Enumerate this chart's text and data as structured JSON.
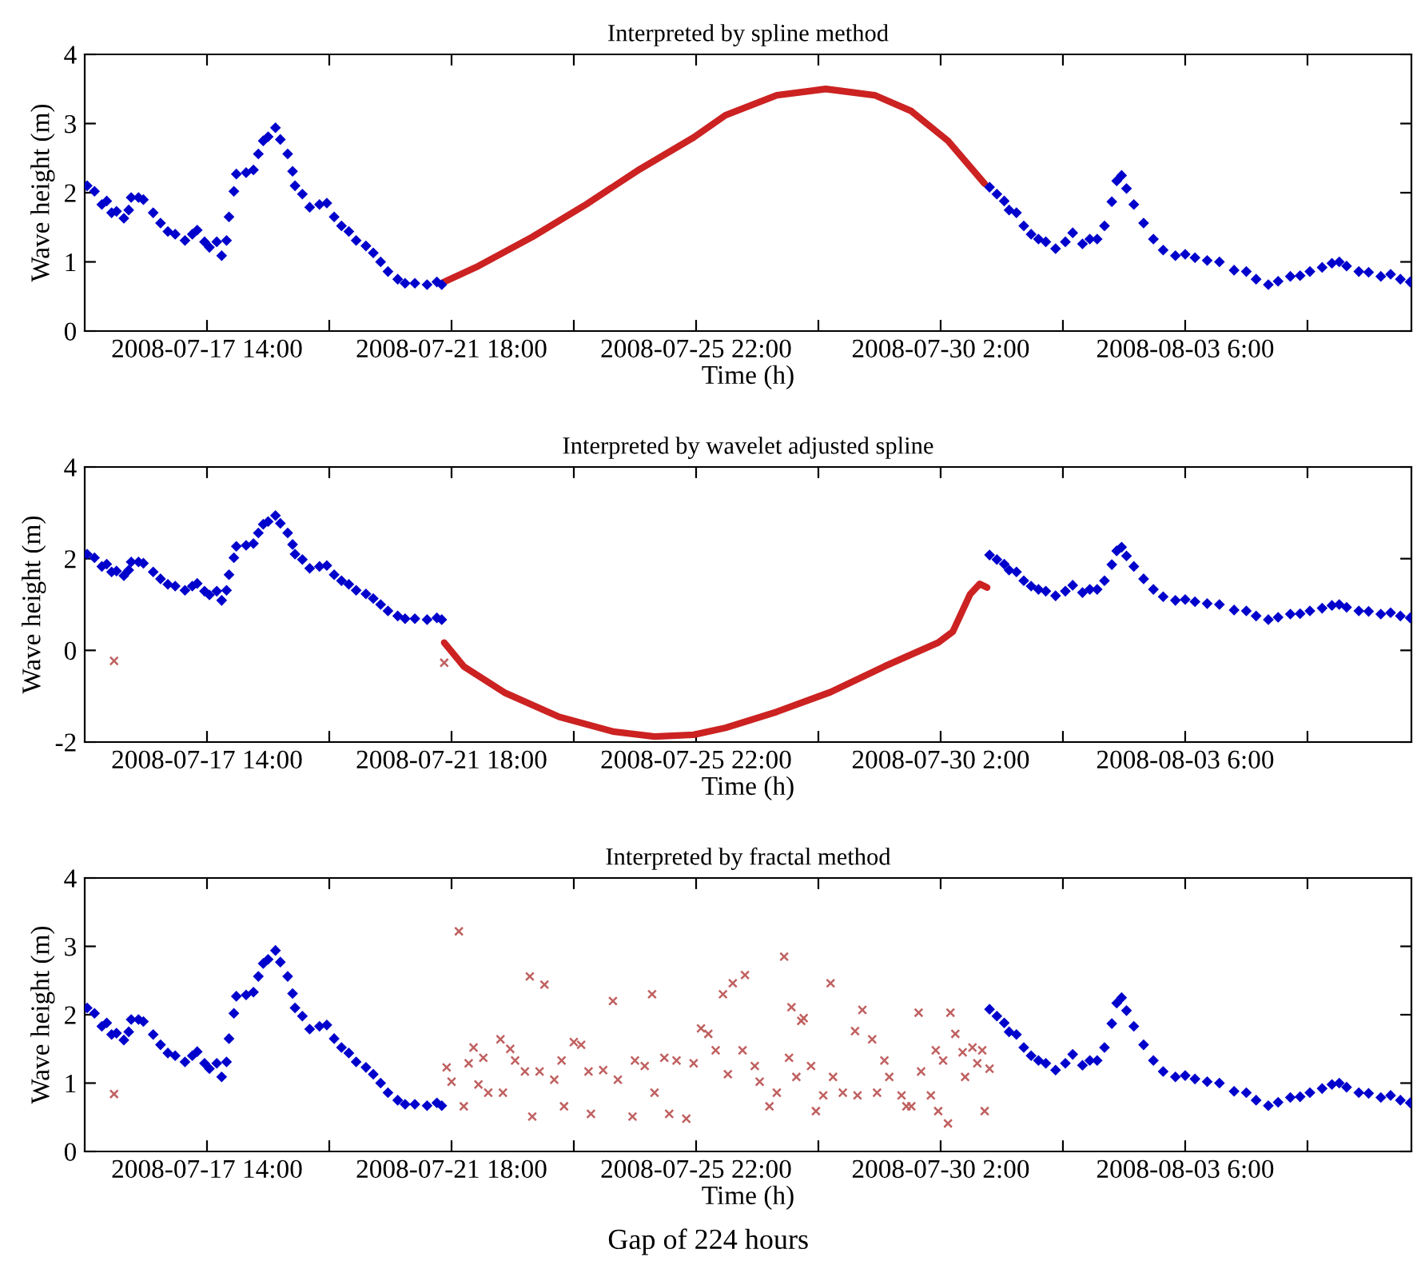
{
  "chart_data": [
    {
      "type": "scatter",
      "title": "Interpreted by spline method",
      "xlabel": "Time (h)",
      "ylabel": "Wave height (m)",
      "xlim": [
        "2008-07-15T12:00",
        "2008-08-07T02:30"
      ],
      "ylim": [
        0,
        4
      ],
      "yticks": [
        0,
        1,
        2,
        3,
        4
      ],
      "xticks": [
        {
          "value": "2008-07-17T14:00",
          "label": "2008-07-17 14:00"
        },
        {
          "value": "2008-07-19T16:00",
          "label": null
        },
        {
          "value": "2008-07-21T18:00",
          "label": "2008-07-21 18:00"
        },
        {
          "value": "2008-07-23T20:00",
          "label": null
        },
        {
          "value": "2008-07-25T22:00",
          "label": "2008-07-25 22:00"
        },
        {
          "value": "2008-07-28T00:00",
          "label": null
        },
        {
          "value": "2008-07-30T02:00",
          "label": "2008-07-30 2:00"
        },
        {
          "value": "2008-08-01T04:00",
          "label": null
        },
        {
          "value": "2008-08-03T06:00",
          "label": "2008-08-03 6:00"
        },
        {
          "value": "2008-08-05T08:00",
          "label": null
        }
      ],
      "grid": false,
      "marker": "diamond",
      "series": [
        {
          "type": "scatter",
          "color": "#0000cc",
          "x": [
            "2008-07-15T13:00",
            "2008-07-15T16:00",
            "2008-07-15T19:00",
            "2008-07-15T21:00",
            "2008-07-15T23:00",
            "2008-07-16T01:00",
            "2008-07-16T04:00",
            "2008-07-16T06:00",
            "2008-07-16T07:00",
            "2008-07-16T10:00",
            "2008-07-16T12:00",
            "2008-07-16T16:00",
            "2008-07-16T19:00",
            "2008-07-16T22:00",
            "2008-07-17T01:00",
            "2008-07-17T05:00",
            "2008-07-17T08:00",
            "2008-07-17T10:00",
            "2008-07-17T13:00",
            "2008-07-17T15:00",
            "2008-07-17T18:00",
            "2008-07-17T20:00",
            "2008-07-17T22:00",
            "2008-07-17T23:00",
            "2008-07-18T01:00",
            "2008-07-18T02:00",
            "2008-07-18T06:00",
            "2008-07-18T09:00",
            "2008-07-18T11:00",
            "2008-07-18T13:00",
            "2008-07-18T15:00",
            "2008-07-18T18:00",
            "2008-07-18T20:00",
            "2008-07-18T23:00",
            "2008-07-19T01:00",
            "2008-07-19T02:00",
            "2008-07-19T05:00",
            "2008-07-19T08:00",
            "2008-07-19T12:00",
            "2008-07-19T15:00",
            "2008-07-19T18:00",
            "2008-07-19T21:00",
            "2008-07-20T00:00",
            "2008-07-20T03:00",
            "2008-07-20T07:00",
            "2008-07-20T10:00",
            "2008-07-20T13:00",
            "2008-07-20T16:00",
            "2008-07-20T20:00",
            "2008-07-20T23:00",
            "2008-07-21T03:00",
            "2008-07-21T08:00",
            "2008-07-21T12:00",
            "2008-07-21T14:00",
            "2008-07-30T22:00",
            "2008-07-31T01:00",
            "2008-07-31T04:00",
            "2008-07-31T06:00",
            "2008-07-31T09:00",
            "2008-07-31T12:00",
            "2008-07-31T15:00",
            "2008-07-31T18:00",
            "2008-07-31T21:00",
            "2008-08-01T01:00",
            "2008-08-01T05:00",
            "2008-08-01T08:00",
            "2008-08-01T12:00",
            "2008-08-01T15:00",
            "2008-08-01T18:00",
            "2008-08-01T21:00",
            "2008-08-02T00:00",
            "2008-08-02T02:00",
            "2008-08-02T04:00",
            "2008-08-02T06:00",
            "2008-08-02T09:00",
            "2008-08-02T13:00",
            "2008-08-02T17:00",
            "2008-08-02T21:00",
            "2008-08-03T02:00",
            "2008-08-03T06:00",
            "2008-08-03T10:00",
            "2008-08-03T15:00",
            "2008-08-03T20:00",
            "2008-08-04T02:00",
            "2008-08-04T07:00",
            "2008-08-04T11:00",
            "2008-08-04T16:00",
            "2008-08-04T20:00",
            "2008-08-05T01:00",
            "2008-08-05T05:00",
            "2008-08-05T09:00",
            "2008-08-05T14:00",
            "2008-08-05T18:00",
            "2008-08-05T21:00",
            "2008-08-06T00:00",
            "2008-08-06T05:00",
            "2008-08-06T09:00",
            "2008-08-06T14:00",
            "2008-08-06T18:00",
            "2008-08-06T22:00",
            "2008-08-07T02:00"
          ],
          "values": [
            2.1,
            2.02,
            1.83,
            1.88,
            1.71,
            1.73,
            1.63,
            1.75,
            1.93,
            1.93,
            1.9,
            1.71,
            1.56,
            1.44,
            1.4,
            1.31,
            1.4,
            1.46,
            1.29,
            1.21,
            1.29,
            1.09,
            1.31,
            1.65,
            2.02,
            2.27,
            2.29,
            2.33,
            2.56,
            2.75,
            2.81,
            2.94,
            2.77,
            2.56,
            2.31,
            2.1,
            1.98,
            1.79,
            1.83,
            1.85,
            1.65,
            1.52,
            1.44,
            1.31,
            1.23,
            1.13,
            1.0,
            0.86,
            0.75,
            0.69,
            0.69,
            0.67,
            0.71,
            0.67,
            2.08,
            1.98,
            1.88,
            1.75,
            1.71,
            1.52,
            1.4,
            1.33,
            1.29,
            1.19,
            1.29,
            1.42,
            1.26,
            1.33,
            1.33,
            1.52,
            1.87,
            2.17,
            2.25,
            2.06,
            1.83,
            1.56,
            1.33,
            1.17,
            1.09,
            1.11,
            1.06,
            1.02,
            1.0,
            0.88,
            0.86,
            0.75,
            0.67,
            0.72,
            0.79,
            0.8,
            0.86,
            0.92,
            0.98,
            1.0,
            0.94,
            0.86,
            0.85,
            0.79,
            0.82,
            0.75,
            0.71
          ]
        },
        {
          "type": "line",
          "marker": "none",
          "color": "#cc2222",
          "x": [
            "2008-07-21T15:00",
            "2008-07-22T05:00",
            "2008-07-23T03:00",
            "2008-07-24T01:00",
            "2008-07-24T23:00",
            "2008-07-25T21:00",
            "2008-07-26T10:00",
            "2008-07-27T07:00",
            "2008-07-28T03:00",
            "2008-07-28T23:00",
            "2008-07-29T14:00",
            "2008-07-30T05:00",
            "2008-07-30T20:00"
          ],
          "values": [
            0.71,
            0.94,
            1.36,
            1.83,
            2.34,
            2.8,
            3.12,
            3.41,
            3.5,
            3.41,
            3.18,
            2.75,
            2.13
          ]
        }
      ]
    },
    {
      "type": "scatter",
      "title": "Interpreted by wavelet adjusted spline",
      "xlabel": "Time (h)",
      "ylabel": "Wave height (m)",
      "xlim": [
        "2008-07-15T12:00",
        "2008-08-07T02:30"
      ],
      "ylim": [
        -2,
        4
      ],
      "yticks": [
        -2,
        0,
        2,
        4
      ],
      "xticks": [
        {
          "value": "2008-07-17T14:00",
          "label": "2008-07-17 14:00"
        },
        {
          "value": "2008-07-19T16:00",
          "label": null
        },
        {
          "value": "2008-07-21T18:00",
          "label": "2008-07-21 18:00"
        },
        {
          "value": "2008-07-23T20:00",
          "label": null
        },
        {
          "value": "2008-07-25T22:00",
          "label": "2008-07-25 22:00"
        },
        {
          "value": "2008-07-28T00:00",
          "label": null
        },
        {
          "value": "2008-07-30T02:00",
          "label": "2008-07-30 2:00"
        },
        {
          "value": "2008-08-01T04:00",
          "label": null
        },
        {
          "value": "2008-08-03T06:00",
          "label": "2008-08-03 6:00"
        },
        {
          "value": "2008-08-05T08:00",
          "label": null
        }
      ],
      "grid": false,
      "marker": "diamond",
      "series": [
        {
          "type": "scatter",
          "color": "#0000cc",
          "x": [
            "2008-07-15T13:00",
            "2008-07-15T16:00",
            "2008-07-15T19:00",
            "2008-07-15T21:00",
            "2008-07-15T23:00",
            "2008-07-16T01:00",
            "2008-07-16T04:00",
            "2008-07-16T06:00",
            "2008-07-16T07:00",
            "2008-07-16T10:00",
            "2008-07-16T12:00",
            "2008-07-16T16:00",
            "2008-07-16T19:00",
            "2008-07-16T22:00",
            "2008-07-17T01:00",
            "2008-07-17T05:00",
            "2008-07-17T08:00",
            "2008-07-17T10:00",
            "2008-07-17T13:00",
            "2008-07-17T15:00",
            "2008-07-17T18:00",
            "2008-07-17T20:00",
            "2008-07-17T22:00",
            "2008-07-17T23:00",
            "2008-07-18T01:00",
            "2008-07-18T02:00",
            "2008-07-18T06:00",
            "2008-07-18T09:00",
            "2008-07-18T11:00",
            "2008-07-18T13:00",
            "2008-07-18T15:00",
            "2008-07-18T18:00",
            "2008-07-18T20:00",
            "2008-07-18T23:00",
            "2008-07-19T01:00",
            "2008-07-19T02:00",
            "2008-07-19T05:00",
            "2008-07-19T08:00",
            "2008-07-19T12:00",
            "2008-07-19T15:00",
            "2008-07-19T18:00",
            "2008-07-19T21:00",
            "2008-07-20T00:00",
            "2008-07-20T03:00",
            "2008-07-20T07:00",
            "2008-07-20T10:00",
            "2008-07-20T13:00",
            "2008-07-20T16:00",
            "2008-07-20T20:00",
            "2008-07-20T23:00",
            "2008-07-21T03:00",
            "2008-07-21T08:00",
            "2008-07-21T12:00",
            "2008-07-21T14:00",
            "2008-07-30T22:00",
            "2008-07-31T01:00",
            "2008-07-31T04:00",
            "2008-07-31T06:00",
            "2008-07-31T09:00",
            "2008-07-31T12:00",
            "2008-07-31T15:00",
            "2008-07-31T18:00",
            "2008-07-31T21:00",
            "2008-08-01T01:00",
            "2008-08-01T05:00",
            "2008-08-01T08:00",
            "2008-08-01T12:00",
            "2008-08-01T15:00",
            "2008-08-01T18:00",
            "2008-08-01T21:00",
            "2008-08-02T00:00",
            "2008-08-02T02:00",
            "2008-08-02T04:00",
            "2008-08-02T06:00",
            "2008-08-02T09:00",
            "2008-08-02T13:00",
            "2008-08-02T17:00",
            "2008-08-02T21:00",
            "2008-08-03T02:00",
            "2008-08-03T06:00",
            "2008-08-03T10:00",
            "2008-08-03T15:00",
            "2008-08-03T20:00",
            "2008-08-04T02:00",
            "2008-08-04T07:00",
            "2008-08-04T11:00",
            "2008-08-04T16:00",
            "2008-08-04T20:00",
            "2008-08-05T01:00",
            "2008-08-05T05:00",
            "2008-08-05T09:00",
            "2008-08-05T14:00",
            "2008-08-05T18:00",
            "2008-08-05T21:00",
            "2008-08-06T00:00",
            "2008-08-06T05:00",
            "2008-08-06T09:00",
            "2008-08-06T14:00",
            "2008-08-06T18:00",
            "2008-08-06T22:00",
            "2008-08-07T02:00"
          ],
          "values": [
            2.1,
            2.02,
            1.83,
            1.88,
            1.71,
            1.73,
            1.63,
            1.75,
            1.93,
            1.93,
            1.9,
            1.71,
            1.56,
            1.44,
            1.4,
            1.31,
            1.4,
            1.46,
            1.29,
            1.21,
            1.29,
            1.09,
            1.31,
            1.65,
            2.02,
            2.27,
            2.29,
            2.33,
            2.56,
            2.75,
            2.81,
            2.94,
            2.77,
            2.56,
            2.31,
            2.1,
            1.98,
            1.79,
            1.83,
            1.85,
            1.65,
            1.52,
            1.44,
            1.31,
            1.23,
            1.13,
            1.0,
            0.86,
            0.75,
            0.69,
            0.69,
            0.67,
            0.71,
            0.67,
            2.08,
            1.98,
            1.88,
            1.75,
            1.71,
            1.52,
            1.4,
            1.33,
            1.29,
            1.19,
            1.29,
            1.42,
            1.26,
            1.33,
            1.33,
            1.52,
            1.87,
            2.17,
            2.25,
            2.06,
            1.83,
            1.56,
            1.33,
            1.17,
            1.09,
            1.11,
            1.06,
            1.02,
            1.0,
            0.88,
            0.86,
            0.75,
            0.67,
            0.72,
            0.79,
            0.8,
            0.86,
            0.92,
            0.98,
            1.0,
            0.94,
            0.86,
            0.85,
            0.79,
            0.82,
            0.75,
            0.71
          ]
        },
        {
          "type": "line",
          "marker": "none",
          "color": "#cc2222",
          "x": [
            "2008-07-21T15:00",
            "2008-07-21T23:00",
            "2008-07-22T16:00",
            "2008-07-23T14:00",
            "2008-07-24T12:00",
            "2008-07-25T05:00",
            "2008-07-25T21:00",
            "2008-07-26T10:00",
            "2008-07-27T07:00",
            "2008-07-28T05:00",
            "2008-07-29T03:00",
            "2008-07-30T01:00",
            "2008-07-30T07:00",
            "2008-07-30T14:00",
            "2008-07-30T18:00",
            "2008-07-30T21:00"
          ],
          "values": [
            0.17,
            -0.35,
            -0.93,
            -1.45,
            -1.77,
            -1.88,
            -1.84,
            -1.69,
            -1.34,
            -0.91,
            -0.35,
            0.17,
            0.41,
            1.22,
            1.45,
            1.37
          ]
        },
        {
          "type": "scatter",
          "marker": "cross",
          "color": "#c06060",
          "x": [
            "2008-07-16T00:00",
            "2008-07-21T15:00"
          ],
          "values": [
            -0.23,
            -0.27
          ]
        }
      ]
    },
    {
      "type": "scatter",
      "title": "Interpreted by fractal method",
      "xlabel": "Time (h)",
      "ylabel": "Wave height (m)",
      "annotations": [
        "Gap of 224 hours"
      ],
      "xlim": [
        "2008-07-15T12:00",
        "2008-08-07T02:30"
      ],
      "ylim": [
        0,
        4
      ],
      "yticks": [
        0,
        1,
        2,
        3,
        4
      ],
      "xticks": [
        {
          "value": "2008-07-17T14:00",
          "label": "2008-07-17 14:00"
        },
        {
          "value": "2008-07-19T16:00",
          "label": null
        },
        {
          "value": "2008-07-21T18:00",
          "label": "2008-07-21 18:00"
        },
        {
          "value": "2008-07-23T20:00",
          "label": null
        },
        {
          "value": "2008-07-25T22:00",
          "label": "2008-07-25 22:00"
        },
        {
          "value": "2008-07-28T00:00",
          "label": null
        },
        {
          "value": "2008-07-30T02:00",
          "label": "2008-07-30 2:00"
        },
        {
          "value": "2008-08-01T04:00",
          "label": null
        },
        {
          "value": "2008-08-03T06:00",
          "label": "2008-08-03 6:00"
        },
        {
          "value": "2008-08-05T08:00",
          "label": null
        }
      ],
      "grid": false,
      "marker": "diamond",
      "series": [
        {
          "type": "scatter",
          "color": "#0000cc",
          "x": [
            "2008-07-15T13:00",
            "2008-07-15T16:00",
            "2008-07-15T19:00",
            "2008-07-15T21:00",
            "2008-07-15T23:00",
            "2008-07-16T01:00",
            "2008-07-16T04:00",
            "2008-07-16T06:00",
            "2008-07-16T07:00",
            "2008-07-16T10:00",
            "2008-07-16T12:00",
            "2008-07-16T16:00",
            "2008-07-16T19:00",
            "2008-07-16T22:00",
            "2008-07-17T01:00",
            "2008-07-17T05:00",
            "2008-07-17T08:00",
            "2008-07-17T10:00",
            "2008-07-17T13:00",
            "2008-07-17T15:00",
            "2008-07-17T18:00",
            "2008-07-17T20:00",
            "2008-07-17T22:00",
            "2008-07-17T23:00",
            "2008-07-18T01:00",
            "2008-07-18T02:00",
            "2008-07-18T06:00",
            "2008-07-18T09:00",
            "2008-07-18T11:00",
            "2008-07-18T13:00",
            "2008-07-18T15:00",
            "2008-07-18T18:00",
            "2008-07-18T20:00",
            "2008-07-18T23:00",
            "2008-07-19T01:00",
            "2008-07-19T02:00",
            "2008-07-19T05:00",
            "2008-07-19T08:00",
            "2008-07-19T12:00",
            "2008-07-19T15:00",
            "2008-07-19T18:00",
            "2008-07-19T21:00",
            "2008-07-20T00:00",
            "2008-07-20T03:00",
            "2008-07-20T07:00",
            "2008-07-20T10:00",
            "2008-07-20T13:00",
            "2008-07-20T16:00",
            "2008-07-20T20:00",
            "2008-07-20T23:00",
            "2008-07-21T03:00",
            "2008-07-21T08:00",
            "2008-07-21T12:00",
            "2008-07-21T14:00",
            "2008-07-30T22:00",
            "2008-07-31T01:00",
            "2008-07-31T04:00",
            "2008-07-31T06:00",
            "2008-07-31T09:00",
            "2008-07-31T12:00",
            "2008-07-31T15:00",
            "2008-07-31T18:00",
            "2008-07-31T21:00",
            "2008-08-01T01:00",
            "2008-08-01T05:00",
            "2008-08-01T08:00",
            "2008-08-01T12:00",
            "2008-08-01T15:00",
            "2008-08-01T18:00",
            "2008-08-01T21:00",
            "2008-08-02T00:00",
            "2008-08-02T02:00",
            "2008-08-02T04:00",
            "2008-08-02T06:00",
            "2008-08-02T09:00",
            "2008-08-02T13:00",
            "2008-08-02T17:00",
            "2008-08-02T21:00",
            "2008-08-03T02:00",
            "2008-08-03T06:00",
            "2008-08-03T10:00",
            "2008-08-03T15:00",
            "2008-08-03T20:00",
            "2008-08-04T02:00",
            "2008-08-04T07:00",
            "2008-08-04T11:00",
            "2008-08-04T16:00",
            "2008-08-04T20:00",
            "2008-08-05T01:00",
            "2008-08-05T05:00",
            "2008-08-05T09:00",
            "2008-08-05T14:00",
            "2008-08-05T18:00",
            "2008-08-05T21:00",
            "2008-08-06T00:00",
            "2008-08-06T05:00",
            "2008-08-06T09:00",
            "2008-08-06T14:00",
            "2008-08-06T18:00",
            "2008-08-06T22:00",
            "2008-08-07T02:00"
          ],
          "values": [
            2.1,
            2.02,
            1.83,
            1.88,
            1.71,
            1.73,
            1.63,
            1.75,
            1.93,
            1.93,
            1.9,
            1.71,
            1.56,
            1.44,
            1.4,
            1.31,
            1.4,
            1.46,
            1.29,
            1.21,
            1.29,
            1.09,
            1.31,
            1.65,
            2.02,
            2.27,
            2.29,
            2.33,
            2.56,
            2.75,
            2.81,
            2.94,
            2.77,
            2.56,
            2.31,
            2.1,
            1.98,
            1.79,
            1.83,
            1.85,
            1.65,
            1.52,
            1.44,
            1.31,
            1.23,
            1.13,
            1.0,
            0.86,
            0.75,
            0.69,
            0.69,
            0.67,
            0.71,
            0.67,
            2.08,
            1.98,
            1.88,
            1.75,
            1.71,
            1.52,
            1.4,
            1.33,
            1.29,
            1.19,
            1.29,
            1.42,
            1.26,
            1.33,
            1.33,
            1.52,
            1.87,
            2.17,
            2.25,
            2.06,
            1.83,
            1.56,
            1.33,
            1.17,
            1.09,
            1.11,
            1.06,
            1.02,
            1.0,
            0.88,
            0.86,
            0.75,
            0.67,
            0.72,
            0.79,
            0.8,
            0.86,
            0.92,
            0.98,
            1.0,
            0.94,
            0.86,
            0.85,
            0.79,
            0.82,
            0.75,
            0.71
          ]
        },
        {
          "type": "scatter",
          "marker": "cross",
          "color": "#c06060",
          "x": [
            "2008-07-16T00:00",
            "2008-07-21T16:00",
            "2008-07-21T18:00",
            "2008-07-21T21:00",
            "2008-07-21T23:00",
            "2008-07-22T01:00",
            "2008-07-22T03:00",
            "2008-07-22T05:00",
            "2008-07-22T07:00",
            "2008-07-22T09:00",
            "2008-07-22T14:00",
            "2008-07-22T15:00",
            "2008-07-22T18:00",
            "2008-07-22T20:00",
            "2008-07-23T00:00",
            "2008-07-23T02:00",
            "2008-07-23T03:00",
            "2008-07-23T06:00",
            "2008-07-23T08:00",
            "2008-07-23T12:00",
            "2008-07-23T15:00",
            "2008-07-23T16:00",
            "2008-07-23T20:00",
            "2008-07-23T23:00",
            "2008-07-24T02:00",
            "2008-07-24T03:00",
            "2008-07-24T08:00",
            "2008-07-24T12:00",
            "2008-07-24T14:00",
            "2008-07-24T20:00",
            "2008-07-24T21:00",
            "2008-07-25T01:00",
            "2008-07-25T04:00",
            "2008-07-25T05:00",
            "2008-07-25T09:00",
            "2008-07-25T11:00",
            "2008-07-25T14:00",
            "2008-07-25T18:00",
            "2008-07-25T21:00",
            "2008-07-26T00:00",
            "2008-07-26T03:00",
            "2008-07-26T06:00",
            "2008-07-26T09:00",
            "2008-07-26T11:00",
            "2008-07-26T13:00",
            "2008-07-26T17:00",
            "2008-07-26T18:00",
            "2008-07-26T22:00",
            "2008-07-27T00:00",
            "2008-07-27T04:00",
            "2008-07-27T07:00",
            "2008-07-27T10:00",
            "2008-07-27T12:00",
            "2008-07-27T13:00",
            "2008-07-27T15:00",
            "2008-07-27T17:00",
            "2008-07-27T18:00",
            "2008-07-27T21:00",
            "2008-07-27T23:00",
            "2008-07-28T02:00",
            "2008-07-28T05:00",
            "2008-07-28T06:00",
            "2008-07-28T10:00",
            "2008-07-28T15:00",
            "2008-07-28T16:00",
            "2008-07-28T18:00",
            "2008-07-28T22:00",
            "2008-07-29T00:00",
            "2008-07-29T03:00",
            "2008-07-29T05:00",
            "2008-07-29T10:00",
            "2008-07-29T12:00",
            "2008-07-29T14:00",
            "2008-07-29T17:00",
            "2008-07-29T18:00",
            "2008-07-29T22:00",
            "2008-07-30T00:00",
            "2008-07-30T01:00",
            "2008-07-30T03:00",
            "2008-07-30T05:00",
            "2008-07-30T06:00",
            "2008-07-30T08:00",
            "2008-07-30T11:00",
            "2008-07-30T12:00",
            "2008-07-30T15:00",
            "2008-07-30T17:00",
            "2008-07-30T19:00",
            "2008-07-30T20:00",
            "2008-07-30T22:00"
          ],
          "values": [
            0.84,
            1.23,
            1.02,
            3.22,
            0.66,
            1.29,
            1.52,
            0.98,
            1.37,
            0.86,
            1.64,
            0.86,
            1.5,
            1.33,
            1.17,
            2.56,
            0.51,
            1.17,
            2.44,
            1.05,
            1.33,
            0.66,
            1.6,
            1.56,
            1.17,
            0.55,
            1.19,
            2.2,
            1.05,
            0.51,
            1.33,
            1.25,
            2.3,
            0.86,
            1.37,
            0.55,
            1.33,
            0.48,
            1.29,
            1.8,
            1.72,
            1.48,
            2.3,
            1.13,
            2.46,
            1.48,
            2.58,
            1.25,
            1.02,
            0.66,
            0.86,
            2.85,
            1.37,
            2.11,
            1.09,
            1.91,
            1.95,
            1.25,
            0.59,
            0.82,
            2.46,
            1.09,
            0.86,
            1.76,
            0.82,
            2.07,
            1.64,
            0.86,
            1.33,
            1.09,
            0.82,
            0.66,
            0.66,
            2.03,
            1.17,
            0.82,
            1.48,
            0.59,
            1.33,
            0.41,
            2.03,
            1.72,
            1.45,
            1.09,
            1.52,
            1.29,
            1.48,
            0.59,
            1.21
          ]
        }
      ]
    }
  ]
}
